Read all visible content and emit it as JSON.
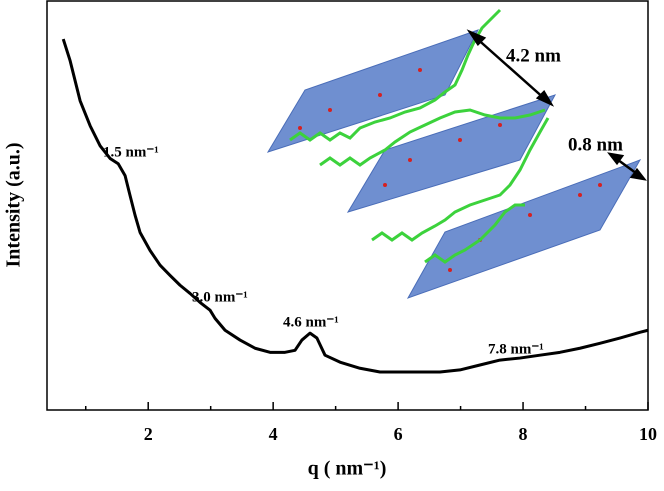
{
  "chart_data": {
    "type": "line",
    "xlabel": "q ( nm⁻¹)",
    "ylabel": "Intensity (a.u.)",
    "x": [
      0.64,
      0.75,
      0.91,
      1.07,
      1.23,
      1.39,
      1.52,
      1.63,
      1.71,
      1.79,
      1.87,
      2.03,
      2.19,
      2.35,
      2.51,
      2.67,
      2.83,
      2.99,
      3.07,
      3.23,
      3.47,
      3.71,
      3.95,
      4.19,
      4.35,
      4.46,
      4.59,
      4.7,
      4.83,
      5.07,
      5.39,
      5.71,
      6.03,
      6.35,
      6.67,
      6.99,
      7.31,
      7.63,
      7.95,
      8.27,
      8.59,
      8.91,
      9.23,
      9.55,
      9.87,
      10.0
    ],
    "series": [
      {
        "color": "#000000",
        "values": [
          90.7,
          85.4,
          75.6,
          69.5,
          64.6,
          61.5,
          60.2,
          57.3,
          52.4,
          47.6,
          43.4,
          39.0,
          35.4,
          32.9,
          30.5,
          28.5,
          26.3,
          24.4,
          22.4,
          19.5,
          17.1,
          15.1,
          14.1,
          14.1,
          14.6,
          17.1,
          18.8,
          17.6,
          13.4,
          11.7,
          10.2,
          9.3,
          9.3,
          9.3,
          9.3,
          9.8,
          11.0,
          12.2,
          12.7,
          13.4,
          14.1,
          15.1,
          16.3,
          17.6,
          19.0,
          19.5
        ]
      }
    ],
    "xlim": [
      0.38,
      10
    ],
    "xticks": [
      2,
      4,
      6,
      8,
      10
    ],
    "xticks_minor": [
      1,
      3,
      5,
      7,
      9
    ],
    "ylim": [
      0,
      100
    ],
    "annotations": [
      "1.5 nm⁻¹",
      "3.0 nm⁻¹",
      "4.6 nm⁻¹",
      "7.8 nm⁻¹",
      "4.2 nm",
      "0.8 nm"
    ]
  }
}
